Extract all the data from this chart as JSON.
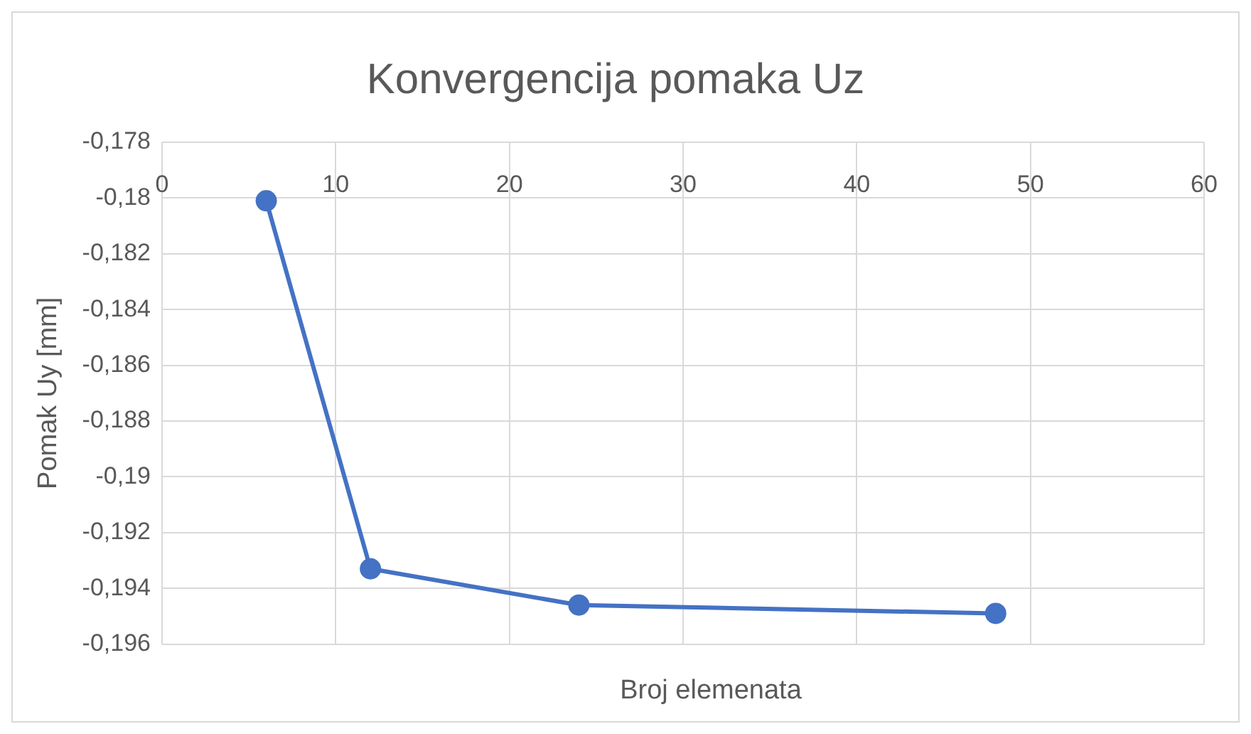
{
  "chart_data": {
    "type": "line",
    "title": "Konvergencija pomaka Uz",
    "xlabel": "Broj elemenata",
    "ylabel": "Pomak Uy [mm]",
    "x": [
      6,
      12,
      24,
      48
    ],
    "series": [
      {
        "color": "#4472c4",
        "values": [
          -0.1801,
          -0.1933,
          -0.1946,
          -0.1949
        ]
      }
    ],
    "xlim": [
      0,
      60
    ],
    "xticks": [
      0,
      10,
      20,
      30,
      40,
      50,
      60
    ],
    "ylim": [
      -0.196,
      -0.178
    ],
    "yticks": [
      {
        "value": -0.178,
        "label": "-0,178"
      },
      {
        "value": -0.18,
        "label": "-0,18"
      },
      {
        "value": -0.182,
        "label": "-0,182"
      },
      {
        "value": -0.184,
        "label": "-0,184"
      },
      {
        "value": -0.186,
        "label": "-0,186"
      },
      {
        "value": -0.188,
        "label": "-0,188"
      },
      {
        "value": -0.19,
        "label": "-0,19"
      },
      {
        "value": -0.192,
        "label": "-0,192"
      },
      {
        "value": -0.194,
        "label": "-0,194"
      },
      {
        "value": -0.196,
        "label": "-0,196"
      }
    ],
    "grid": true,
    "legend": false,
    "marker": "circle",
    "line_style": "solid"
  }
}
